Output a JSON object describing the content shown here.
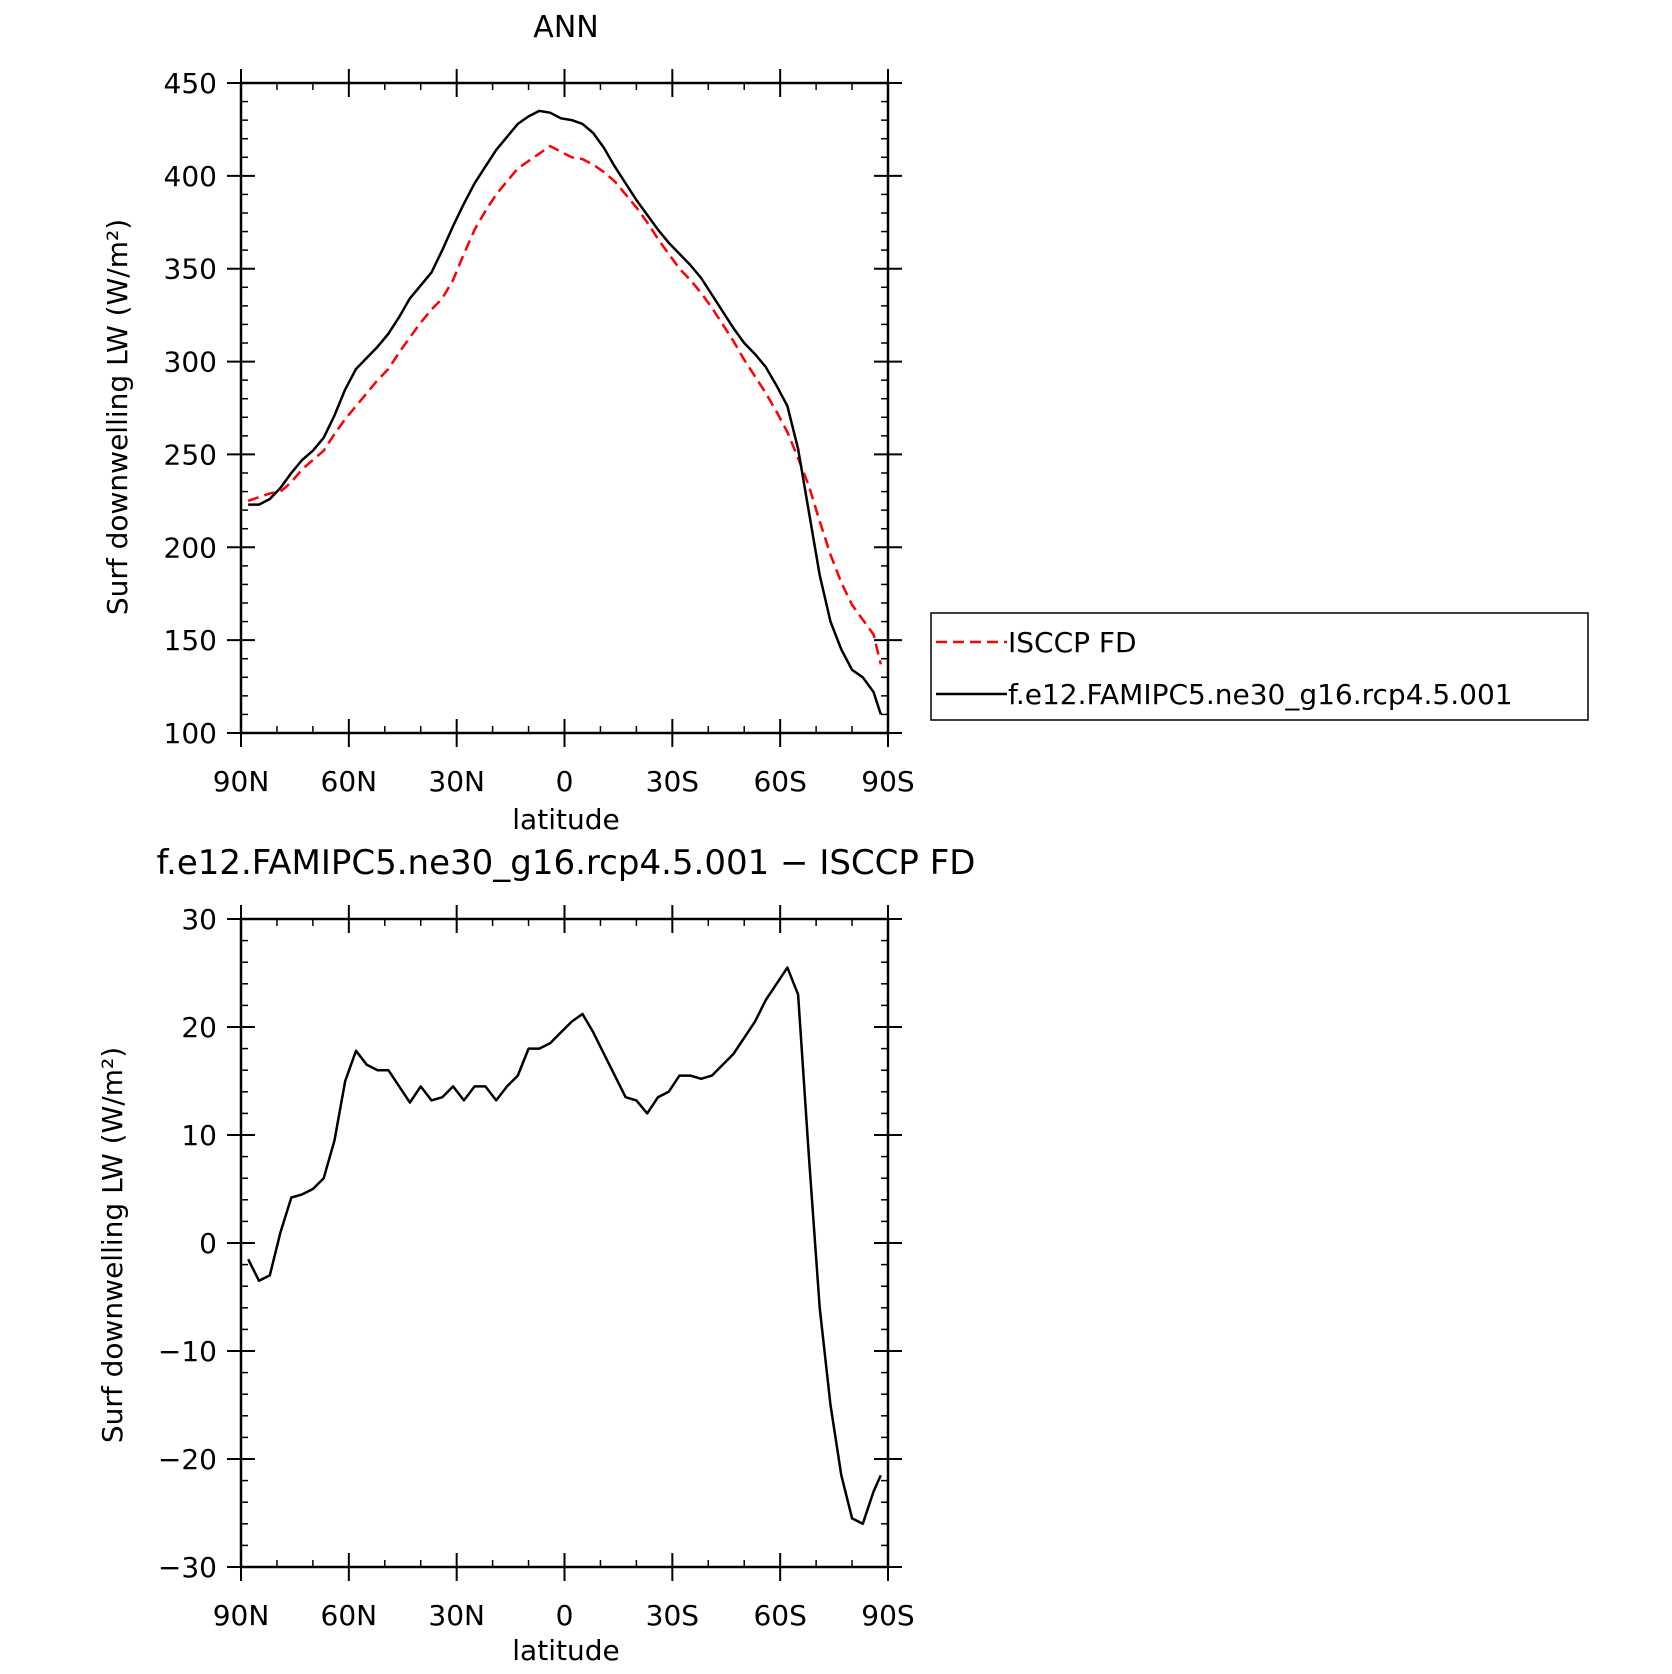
{
  "chart_data": [
    {
      "type": "line",
      "title": "ANN",
      "xlabel": "latitude",
      "ylabel": "Surf downwelling LW (W/m²)",
      "xlim": [
        90,
        -90
      ],
      "ylim": [
        100,
        450
      ],
      "yticks": [
        100,
        150,
        200,
        250,
        300,
        350,
        400,
        450
      ],
      "xticks": [
        90,
        60,
        30,
        0,
        -30,
        -60,
        -90
      ],
      "xtick_labels": [
        "90N",
        "60N",
        "30N",
        "0",
        "30S",
        "60S",
        "90S"
      ],
      "legend_position": "right",
      "series": [
        {
          "name": "ISCCP FD",
          "color": "#ff0000",
          "dash": "dashed",
          "x": [
            88,
            85,
            82,
            79,
            76,
            73,
            70,
            67,
            64,
            61,
            58,
            55,
            52,
            49,
            46,
            43,
            40,
            37,
            34,
            31,
            28,
            25,
            22,
            19,
            16,
            13,
            10,
            7,
            4,
            1,
            -2,
            -5,
            -8,
            -11,
            -14,
            -17,
            -20,
            -23,
            -26,
            -29,
            -32,
            -35,
            -38,
            -41,
            -44,
            -47,
            -50,
            -53,
            -56,
            -59,
            -62,
            -65,
            -68,
            -71,
            -74,
            -77,
            -80,
            -83,
            -86,
            -88
          ],
          "y": [
            225,
            227,
            229,
            230,
            235,
            242,
            247,
            252,
            261,
            269,
            276,
            283,
            290,
            296,
            305,
            313,
            321,
            328,
            334,
            344,
            358,
            371,
            381,
            390,
            397,
            404,
            408,
            412,
            416,
            413,
            410,
            409,
            406,
            402,
            397,
            390,
            383,
            375,
            366,
            358,
            350,
            344,
            337,
            329,
            320,
            311,
            301,
            292,
            283,
            273,
            262,
            248,
            233,
            214,
            196,
            181,
            169,
            161,
            153,
            137
          ]
        },
        {
          "name": "f.e12.FAMIPC5.ne30_g16.rcp4.5.001",
          "color": "#000000",
          "dash": "solid",
          "x": [
            88,
            85,
            82,
            79,
            76,
            73,
            70,
            67,
            64,
            61,
            58,
            55,
            52,
            49,
            46,
            43,
            40,
            37,
            34,
            31,
            28,
            25,
            22,
            19,
            16,
            13,
            10,
            7,
            4,
            1,
            -2,
            -5,
            -8,
            -11,
            -14,
            -17,
            -20,
            -23,
            -26,
            -29,
            -32,
            -35,
            -38,
            -41,
            -44,
            -47,
            -50,
            -53,
            -56,
            -59,
            -62,
            -65,
            -68,
            -71,
            -74,
            -77,
            -80,
            -83,
            -86,
            -88
          ],
          "y": [
            223,
            223,
            226,
            232,
            240,
            247,
            252,
            259,
            271,
            285,
            296,
            302,
            308,
            315,
            324,
            334,
            341,
            348,
            360,
            373,
            385,
            396,
            405,
            414,
            421,
            428,
            432,
            435,
            434,
            431,
            430,
            428,
            423,
            415,
            405,
            396,
            387,
            379,
            371,
            364,
            358,
            352,
            345,
            336,
            327,
            318,
            310,
            304,
            297,
            287,
            276,
            253,
            219,
            185,
            160,
            145,
            134,
            130,
            122,
            110
          ]
        }
      ]
    },
    {
      "type": "line",
      "title": "f.e12.FAMIPC5.ne30_g16.rcp4.5.001 − ISCCP FD",
      "xlabel": "latitude",
      "ylabel": "Surf downwelling LW (W/m²)",
      "xlim": [
        90,
        -90
      ],
      "ylim": [
        -30,
        30
      ],
      "yticks": [
        -30,
        -20,
        -10,
        0,
        10,
        20,
        30
      ],
      "ytick_labels": [
        "−30",
        "−20",
        "−10",
        "0",
        "10",
        "20",
        "30"
      ],
      "xticks": [
        90,
        60,
        30,
        0,
        -30,
        -60,
        -90
      ],
      "xtick_labels": [
        "90N",
        "60N",
        "30N",
        "0",
        "30S",
        "60S",
        "90S"
      ],
      "series": [
        {
          "color": "#000000",
          "dash": "solid",
          "x": [
            88,
            85,
            82,
            79,
            76,
            73,
            70,
            67,
            64,
            61,
            58,
            55,
            52,
            49,
            46,
            43,
            40,
            37,
            34,
            31,
            28,
            25,
            22,
            19,
            16,
            13,
            10,
            7,
            4,
            1,
            -2,
            -5,
            -8,
            -11,
            -14,
            -17,
            -20,
            -23,
            -26,
            -29,
            -32,
            -35,
            -38,
            -41,
            -44,
            -47,
            -50,
            -53,
            -56,
            -59,
            -62,
            -65,
            -68,
            -71,
            -74,
            -77,
            -80,
            -83,
            -86,
            -88
          ],
          "y": [
            -1.5,
            -3.5,
            -3,
            1,
            4.2,
            4.5,
            5,
            6,
            9.5,
            15,
            17.8,
            16.5,
            16,
            16,
            14.5,
            13,
            14.5,
            13.2,
            13.5,
            14.5,
            13.2,
            14.5,
            14.5,
            13.2,
            14.5,
            15.5,
            18,
            18,
            18.5,
            19.5,
            20.5,
            21.2,
            19.5,
            17.5,
            15.5,
            13.5,
            13.2,
            12,
            13.5,
            14,
            15.5,
            15.5,
            15.2,
            15.5,
            16.5,
            17.5,
            19,
            20.5,
            22.5,
            24,
            25.5,
            23,
            8,
            -6,
            -15,
            -21.5,
            -25.5,
            -26,
            -23,
            -21.5
          ]
        }
      ]
    }
  ],
  "legend": {
    "items": [
      {
        "label": "ISCCP FD",
        "color": "#ff0000",
        "dash": "dashed"
      },
      {
        "label": "f.e12.FAMIPC5.ne30_g16.rcp4.5.001",
        "color": "#000000",
        "dash": "solid"
      }
    ]
  }
}
